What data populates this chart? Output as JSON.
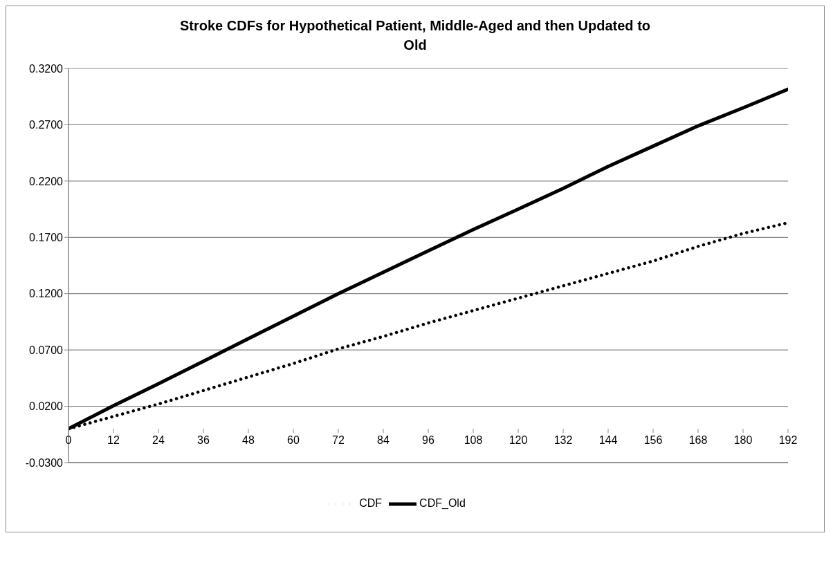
{
  "chart_data": {
    "type": "line",
    "title": "Stroke CDFs for Hypothetical Patient, Middle-Aged and then Updated to Old",
    "x": [
      0,
      12,
      24,
      36,
      48,
      60,
      72,
      84,
      96,
      108,
      120,
      132,
      144,
      156,
      168,
      180,
      192
    ],
    "series": [
      {
        "name": "CDF",
        "color": "#000000",
        "line_style": "dotted",
        "values": [
          0,
          0.011,
          0.022,
          0.034,
          0.046,
          0.058,
          0.071,
          0.082,
          0.094,
          0.105,
          0.116,
          0.127,
          0.138,
          0.149,
          0.162,
          0.1735,
          0.183
        ]
      },
      {
        "name": "CDF_Old",
        "color": "#000000",
        "line_style": "solid",
        "values": [
          0,
          0.0205,
          0.04,
          0.06,
          0.08,
          0.1,
          0.12,
          0.139,
          0.158,
          0.177,
          0.195,
          0.2135,
          0.233,
          0.251,
          0.269,
          0.285,
          0.3015
        ]
      }
    ],
    "xlim": [
      0,
      192
    ],
    "xticks": [
      0,
      12,
      24,
      36,
      48,
      60,
      72,
      84,
      96,
      108,
      120,
      132,
      144,
      156,
      168,
      180,
      192
    ],
    "ylim": [
      -0.03,
      0.32
    ],
    "yticks": [
      {
        "value": -0.03,
        "label": "-0.0300"
      },
      {
        "value": 0.02,
        "label": "0.0200"
      },
      {
        "value": 0.07,
        "label": "0.0700"
      },
      {
        "value": 0.12,
        "label": "0.1200"
      },
      {
        "value": 0.17,
        "label": "0.1700"
      },
      {
        "value": 0.22,
        "label": "0.2200"
      },
      {
        "value": 0.27,
        "label": "0.2700"
      },
      {
        "value": 0.32,
        "label": "0.3200"
      }
    ],
    "grid": "y",
    "legend": "bottom",
    "marker": "none"
  }
}
